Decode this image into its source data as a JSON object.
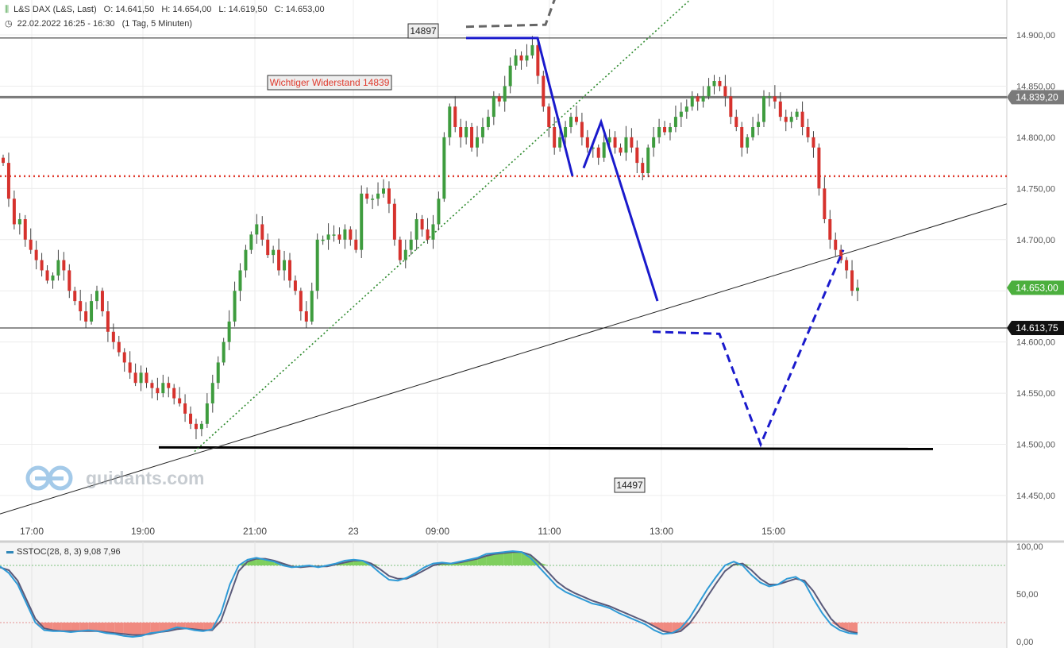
{
  "header": {
    "instrument": "L&S DAX (L&S, Last)",
    "open": "O: 14.641,50",
    "high": "H: 14.654,00",
    "low": "L: 14.619,50",
    "close": "C: 14.653,00",
    "datetime": "22.02.2022 16:25 - 16:30",
    "interval": "(1 Tag, 5 Minuten)"
  },
  "watermark": "guidants.com",
  "colors": {
    "up": "#3e9c3e",
    "down": "#d6322d",
    "annotation_blue": "#1a1acc",
    "resistance_red": "#e03b2e",
    "stoch_blue": "#2f9ad6",
    "stoch_dark": "#5a5a7a"
  },
  "chart_data": [
    {
      "type": "candlestick",
      "x_labels": [
        "17:00",
        "19:00",
        "21:00",
        "23",
        "09:00",
        "11:00",
        "13:00",
        "15:00"
      ],
      "y_ticks": [
        "14.900,00",
        "14.850,00",
        "14.800,00",
        "14.750,00",
        "14.700,00",
        "14.650,00",
        "14.600,00",
        "14.550,00",
        "14.500,00",
        "14.450,00"
      ],
      "ylim": [
        14420,
        14935
      ],
      "price_labels": {
        "resistance": "14.839,20",
        "last": "14.653,00",
        "support_line": "14.613,75"
      },
      "annotations": {
        "high_box": "14897",
        "low_box": "14497",
        "resistance_box": "Wichtiger Widerstand 14839"
      },
      "levels": {
        "high": 14897,
        "resistance": 14839.2,
        "red_dotted": 14762,
        "support_line": 14613.75,
        "bottom": 14497
      },
      "closes": [
        14775,
        14740,
        14715,
        14720,
        14700,
        14690,
        14680,
        14670,
        14660,
        14665,
        14680,
        14670,
        14650,
        14640,
        14630,
        14620,
        14640,
        14650,
        14630,
        14610,
        14600,
        14590,
        14580,
        14570,
        14560,
        14570,
        14560,
        14555,
        14550,
        14560,
        14555,
        14545,
        14540,
        14530,
        14520,
        14515,
        14520,
        14540,
        14560,
        14580,
        14600,
        14620,
        14650,
        14670,
        14690,
        14705,
        14715,
        14700,
        14685,
        14690,
        14670,
        14680,
        14660,
        14650,
        14630,
        14620,
        14650,
        14700,
        14700,
        14705,
        14705,
        14700,
        14710,
        14700,
        14690,
        14745,
        14740,
        14740,
        14745,
        14750,
        14735,
        14700,
        14680,
        14690,
        14700,
        14720,
        14710,
        14700,
        14715,
        14740,
        14800,
        14830,
        14810,
        14800,
        14810,
        14790,
        14800,
        14810,
        14820,
        14840,
        14835,
        14850,
        14870,
        14880,
        14875,
        14880,
        14890,
        14860,
        14830,
        14810,
        14790,
        14800,
        14810,
        14820,
        14815,
        14800,
        14790,
        14790,
        14780,
        14795,
        14800,
        14790,
        14785,
        14800,
        14790,
        14775,
        14765,
        14790,
        14800,
        14810,
        14805,
        14810,
        14820,
        14825,
        14830,
        14840,
        14835,
        14840,
        14850,
        14855,
        14850,
        14840,
        14820,
        14810,
        14790,
        14800,
        14810,
        14815,
        14840,
        14840,
        14835,
        14820,
        14815,
        14820,
        14825,
        14810,
        14800,
        14790,
        14750,
        14720,
        14700,
        14690,
        14680,
        14670,
        14650,
        14653
      ],
      "trendlines": [
        {
          "name": "thin black support",
          "from": [
            0,
            14432
          ],
          "to": [
            1268,
            14735
          ]
        },
        {
          "name": "green dotted",
          "from": [
            245,
            14493
          ],
          "to": [
            870,
            14935
          ]
        }
      ]
    },
    {
      "type": "line",
      "title": "SSTOC(28, 8, 3)",
      "values_label": "9,08",
      "values_label2": "7,96",
      "y_ticks": [
        "100,00",
        "50,00",
        "0,00"
      ],
      "ylim": [
        0,
        100
      ],
      "overbought": 80,
      "oversold": 20,
      "k": [
        79,
        72,
        60,
        40,
        20,
        12,
        11,
        11,
        10,
        11,
        12,
        11,
        9,
        8,
        6,
        5,
        6,
        9,
        10,
        12,
        15,
        14,
        12,
        11,
        13,
        30,
        60,
        80,
        86,
        88,
        86,
        84,
        80,
        78,
        79,
        80,
        78,
        80,
        82,
        85,
        86,
        85,
        80,
        72,
        65,
        64,
        67,
        72,
        78,
        82,
        83,
        82,
        84,
        86,
        88,
        92,
        93,
        94,
        95,
        94,
        88,
        78,
        68,
        58,
        52,
        48,
        44,
        40,
        38,
        35,
        30,
        26,
        22,
        18,
        12,
        8,
        9,
        14,
        25,
        40,
        55,
        68,
        80,
        84,
        80,
        70,
        62,
        58,
        60,
        66,
        68,
        62,
        45,
        30,
        18,
        12,
        9,
        8
      ],
      "d": [
        78,
        75,
        64,
        44,
        24,
        14,
        12,
        11,
        11,
        11,
        11,
        11,
        10,
        9,
        8,
        7,
        7,
        8,
        10,
        11,
        13,
        14,
        13,
        12,
        12,
        22,
        48,
        74,
        84,
        87,
        87,
        85,
        82,
        79,
        78,
        79,
        79,
        79,
        81,
        83,
        85,
        85,
        82,
        76,
        69,
        66,
        66,
        70,
        75,
        80,
        82,
        82,
        83,
        85,
        87,
        90,
        92,
        93,
        94,
        94,
        91,
        83,
        73,
        63,
        56,
        51,
        47,
        43,
        40,
        37,
        33,
        29,
        25,
        21,
        16,
        11,
        9,
        11,
        19,
        32,
        47,
        61,
        74,
        81,
        82,
        75,
        66,
        60,
        60,
        63,
        66,
        64,
        53,
        38,
        24,
        15,
        11,
        9
      ]
    }
  ]
}
